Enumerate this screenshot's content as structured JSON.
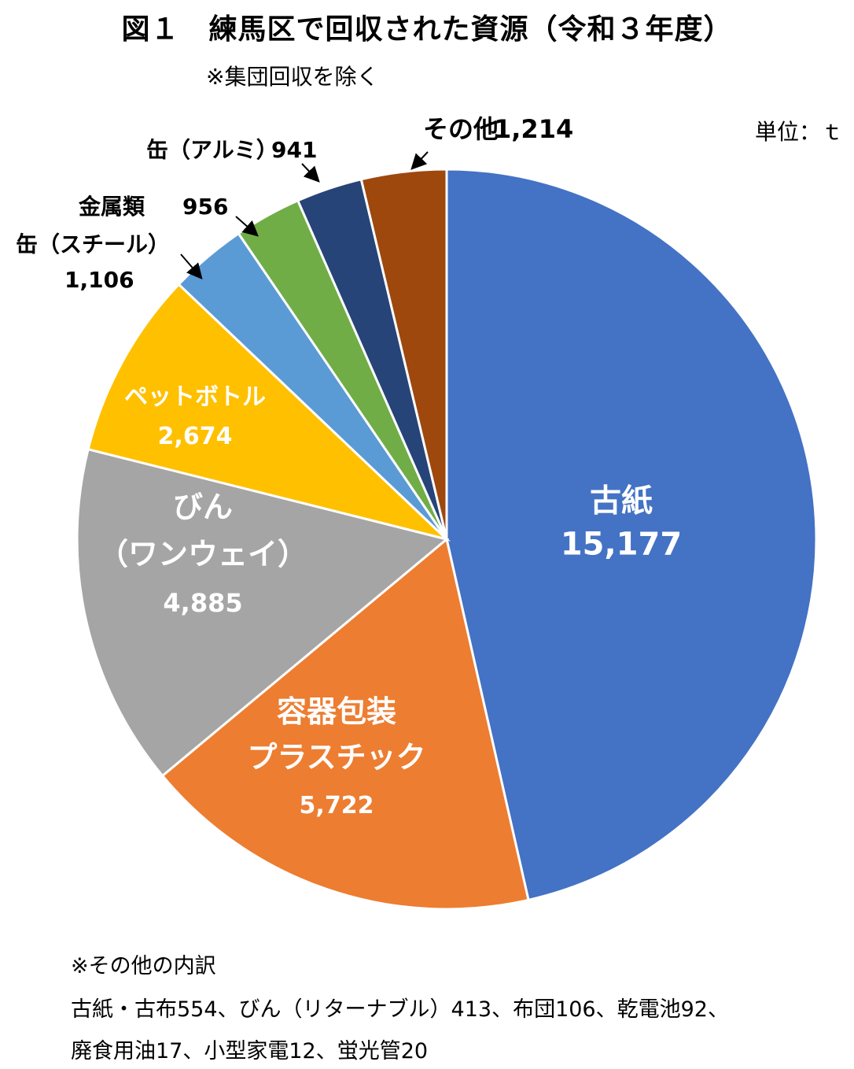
{
  "title": "図１　練馬区で回収された資源（令和３年度）",
  "subtitle": "※集団回収を除く",
  "unit": "単位：ｔ",
  "chart_data": {
    "type": "pie",
    "title": "図１　練馬区で回収された資源（令和３年度）",
    "slices": [
      {
        "label": [
          "古紙"
        ],
        "value": 15177,
        "value_label": "15,177",
        "color": "#4472C4",
        "label_color": "#ffffff"
      },
      {
        "label": [
          "容器包装",
          "プラスチック"
        ],
        "value": 5722,
        "value_label": "5,722",
        "color": "#ED7D31",
        "label_color": "#ffffff"
      },
      {
        "label": [
          "びん",
          "（ワンウェイ）"
        ],
        "value": 4885,
        "value_label": "4,885",
        "color": "#A5A5A5",
        "label_color": "#ffffff"
      },
      {
        "label": [
          "ペットボトル"
        ],
        "value": 2674,
        "value_label": "2,674",
        "color": "#FFC000",
        "label_color": "#ffffff"
      },
      {
        "label": [
          "缶（スチール）"
        ],
        "value": 1106,
        "value_label": "1,106",
        "color": "#5B9BD5",
        "label_color": "#000000"
      },
      {
        "label": [
          "金属類"
        ],
        "value": 956,
        "value_label": "956",
        "color": "#70AD47",
        "label_color": "#000000"
      },
      {
        "label": [
          "缶（アルミ）"
        ],
        "value": 941,
        "value_label": "941",
        "color": "#264478",
        "label_color": "#000000"
      },
      {
        "label": [
          "その他"
        ],
        "value": 1214,
        "value_label": "1,214",
        "color": "#9E480E",
        "label_color": "#000000"
      }
    ]
  },
  "notes": {
    "heading": "※その他の内訳",
    "line1": "古紙・古布554、びん（リターナブル）413、布団106、乾電池92、",
    "line2": "廃食用油17、小型家電12、蛍光管20"
  }
}
